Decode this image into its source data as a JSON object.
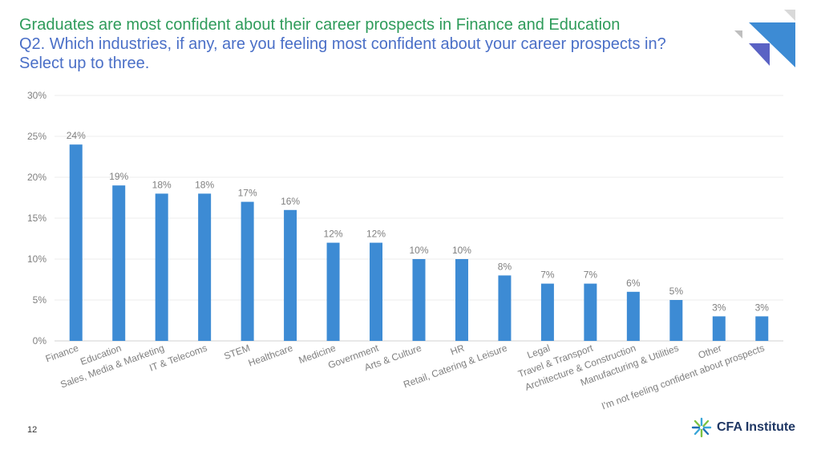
{
  "slide": {
    "title": "Graduates are most confident about their career prospects in Finance and Education",
    "subtitle": "Q2. Which industries, if any, are you feeling most confident about your career prospects in? Select up to three.",
    "page_number": "12",
    "brand": "CFA Institute",
    "brand_icon": "cfa-globe-icon",
    "colors": {
      "title": "#2e9b5a",
      "subtitle": "#4a6fc7",
      "bar": "#3d8bd4",
      "accent_light": "#3d8bd4",
      "accent_dark": "#5a62c4",
      "accent_grey": "#d9d9d9"
    }
  },
  "chart_data": {
    "type": "bar",
    "categories": [
      "Finance",
      "Education",
      "Sales, Media & Marketing",
      "IT & Telecoms",
      "STEM",
      "Healthcare",
      "Medicine",
      "Government",
      "Arts & Culture",
      "HR",
      "Retail, Catering & Leisure",
      "Legal",
      "Travel & Transport",
      "Architecture & Construction",
      "Manufacturing & Utilities",
      "Other",
      "I'm not feeling confident about prospects"
    ],
    "values": [
      24,
      19,
      18,
      18,
      17,
      16,
      12,
      12,
      10,
      10,
      8,
      7,
      7,
      6,
      5,
      3,
      3
    ],
    "data_labels": [
      "24%",
      "19%",
      "18%",
      "18%",
      "17%",
      "16%",
      "12%",
      "12%",
      "10%",
      "10%",
      "8%",
      "7%",
      "7%",
      "6%",
      "5%",
      "3%",
      "3%"
    ],
    "y_ticks": [
      0,
      5,
      10,
      15,
      20,
      25,
      30
    ],
    "y_tick_labels": [
      "0%",
      "5%",
      "10%",
      "15%",
      "20%",
      "25%",
      "30%"
    ],
    "ylim": [
      0,
      30
    ],
    "grid": true,
    "legend": "none"
  }
}
